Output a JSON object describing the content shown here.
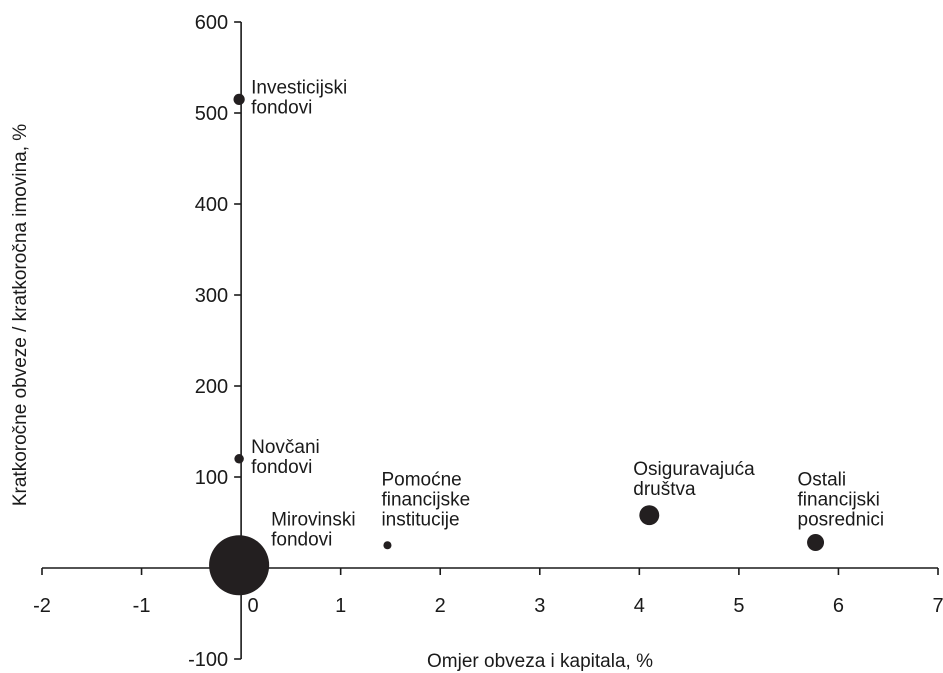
{
  "chart_data": {
    "type": "scatter",
    "title": "",
    "xlabel": "Omjer obveza i kapitala, %",
    "ylabel": "Kratkoročne obveze / kratkoročna imovina, %",
    "xlim": [
      -2,
      7
    ],
    "ylim": [
      -100,
      600
    ],
    "x_ticks": [
      "-2",
      "-1",
      "0",
      "1",
      "2",
      "3",
      "4",
      "5",
      "6",
      "7"
    ],
    "y_ticks": [
      "-100",
      "0",
      "100",
      "200",
      "300",
      "400",
      "500",
      "600"
    ],
    "grid": false,
    "legend": "none",
    "bubble_color": "#231f20",
    "points": [
      {
        "label_lines": [
          "Investicijski",
          "fondovi"
        ],
        "x": -0.02,
        "y": 515,
        "size": 0.35
      },
      {
        "label_lines": [
          "Novčani",
          "fondovi"
        ],
        "x": -0.02,
        "y": 120,
        "size": 0.25
      },
      {
        "label_lines": [
          "Mirovinski",
          "fondovi"
        ],
        "x": -0.02,
        "y": 3,
        "size": 10
      },
      {
        "label_lines": [
          "Pomoćne",
          "financijske",
          "institucije"
        ],
        "x": 1.47,
        "y": 25,
        "size": 0.18
      },
      {
        "label_lines": [
          "Osiguravajuća",
          "društva"
        ],
        "x": 4.1,
        "y": 58,
        "size": 1.1
      },
      {
        "label_lines": [
          "Ostali",
          "financijski",
          "posrednici"
        ],
        "x": 5.77,
        "y": 28,
        "size": 0.8
      }
    ]
  }
}
